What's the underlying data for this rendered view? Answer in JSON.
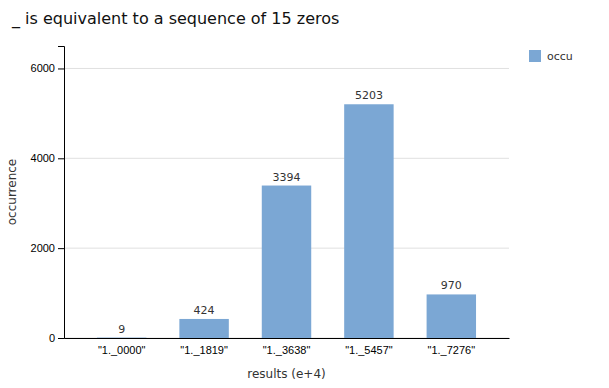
{
  "chart_data": {
    "type": "bar",
    "title": "_ is equivalent to a sequence of 15 zeros",
    "categories": [
      "\"1._0000\"",
      "\"1._1819\"",
      "\"1._3638\"",
      "\"1._5457\"",
      "\"1._7276\""
    ],
    "series": [
      {
        "name": "occu",
        "color": "#7ba7d4",
        "values": [
          9,
          424,
          3394,
          5203,
          970
        ]
      }
    ],
    "xlabel": "results (e+4)",
    "ylabel": "occurrence",
    "ylim": [
      0,
      6500
    ],
    "yticks": [
      0,
      2000,
      4000,
      6000
    ],
    "grid": true,
    "legend": "right",
    "data_labels": true
  }
}
